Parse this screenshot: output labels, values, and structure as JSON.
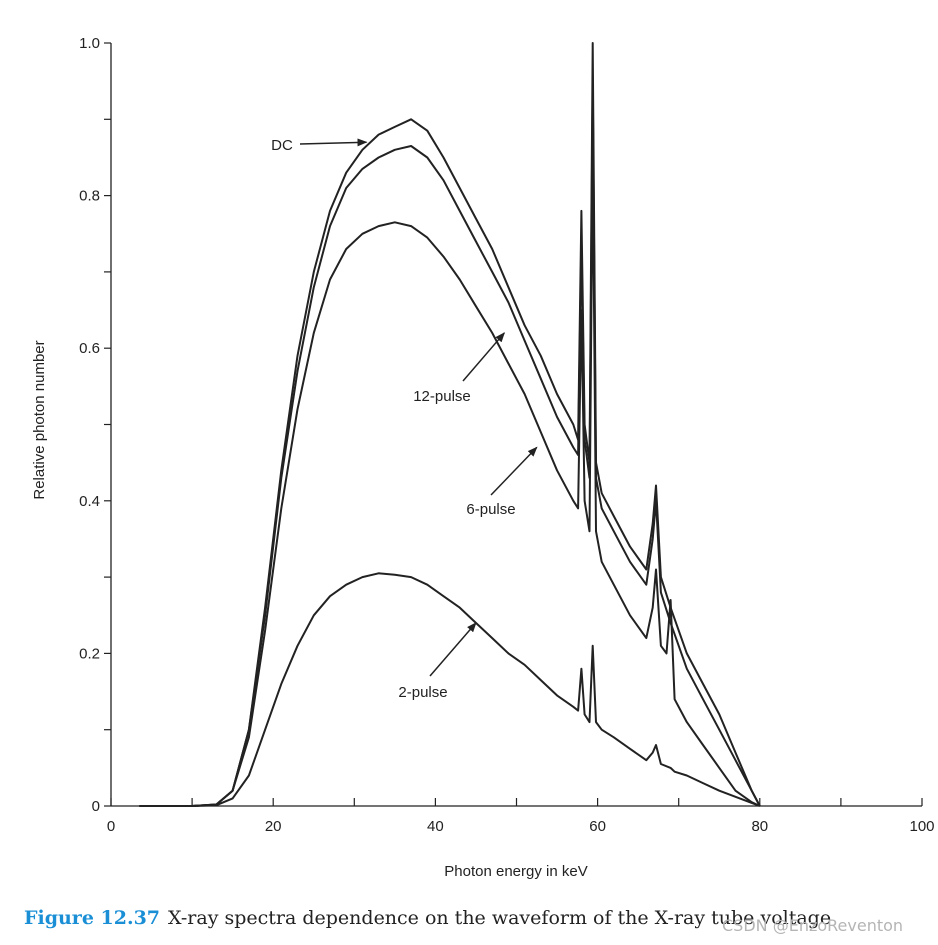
{
  "caption": {
    "figure_number": "Figure 12.37",
    "text": "X-ray spectra dependence on the waveform of the X-ray tube voltage"
  },
  "watermark": "CSDN @EnzoReventon",
  "chart_data": {
    "type": "line",
    "title": "",
    "xlabel": "Photon energy in keV",
    "ylabel": "Relative photon number",
    "xlim": [
      0,
      100
    ],
    "ylim": [
      0,
      1.0
    ],
    "x_ticks": [
      0,
      20,
      40,
      60,
      80,
      100
    ],
    "x_tick_labels": [
      "0",
      "20",
      "40",
      "60",
      "80",
      "100"
    ],
    "x_minor_ticks": [
      10,
      30,
      50,
      70,
      90
    ],
    "y_ticks": [
      0,
      0.2,
      0.4,
      0.6,
      0.8,
      1.0
    ],
    "y_tick_labels": [
      "0",
      "0.2",
      "0.4",
      "0.6",
      "0.8",
      "1.0"
    ],
    "y_minor_ticks": [
      0.1,
      0.3,
      0.5,
      0.7,
      0.9
    ],
    "grid": false,
    "series": [
      {
        "name": "DC",
        "x": [
          3.5,
          10,
          13,
          15,
          17,
          19,
          21,
          23,
          25,
          27,
          29,
          31,
          33,
          35,
          37,
          39,
          41,
          43,
          45,
          47,
          49,
          51,
          53,
          55,
          57,
          57.6,
          58,
          58.4,
          59,
          59.4,
          59.8,
          60.5,
          62,
          64,
          66,
          66.8,
          67.2,
          67.8,
          69,
          71,
          73,
          75,
          77,
          79,
          80
        ],
        "y": [
          0,
          0,
          0.002,
          0.02,
          0.1,
          0.26,
          0.44,
          0.59,
          0.7,
          0.78,
          0.83,
          0.86,
          0.88,
          0.89,
          0.9,
          0.885,
          0.85,
          0.81,
          0.77,
          0.73,
          0.68,
          0.63,
          0.59,
          0.54,
          0.5,
          0.48,
          0.78,
          0.5,
          0.45,
          1.0,
          0.45,
          0.41,
          0.38,
          0.34,
          0.31,
          0.37,
          0.42,
          0.3,
          0.26,
          0.2,
          0.16,
          0.12,
          0.07,
          0.02,
          0.0
        ]
      },
      {
        "name": "12-pulse",
        "x": [
          3.5,
          10,
          13,
          15,
          17,
          19,
          21,
          23,
          25,
          27,
          29,
          31,
          33,
          35,
          37,
          39,
          41,
          43,
          45,
          47,
          49,
          51,
          53,
          55,
          57,
          57.6,
          58,
          58.4,
          59,
          59.4,
          59.8,
          60.5,
          62,
          64,
          66,
          66.8,
          67.2,
          67.8,
          69,
          71,
          73,
          75,
          77,
          79,
          80
        ],
        "y": [
          0,
          0,
          0.002,
          0.02,
          0.1,
          0.25,
          0.43,
          0.57,
          0.68,
          0.76,
          0.81,
          0.835,
          0.85,
          0.86,
          0.865,
          0.85,
          0.82,
          0.78,
          0.74,
          0.7,
          0.66,
          0.61,
          0.56,
          0.51,
          0.47,
          0.46,
          0.74,
          0.48,
          0.43,
          0.95,
          0.43,
          0.39,
          0.36,
          0.32,
          0.29,
          0.35,
          0.4,
          0.28,
          0.24,
          0.18,
          0.14,
          0.1,
          0.06,
          0.02,
          0.0
        ]
      },
      {
        "name": "6-pulse",
        "x": [
          3.5,
          10,
          13,
          15,
          17,
          19,
          21,
          23,
          25,
          27,
          29,
          31,
          33,
          35,
          37,
          39,
          41,
          43,
          45,
          47,
          49,
          51,
          53,
          55,
          57,
          57.6,
          58,
          58.4,
          59,
          59.4,
          59.8,
          60.5,
          62,
          64,
          66,
          66.8,
          67.2,
          67.8,
          68.5,
          69,
          69.5,
          71,
          73,
          75,
          77,
          79,
          80
        ],
        "y": [
          0,
          0,
          0.002,
          0.02,
          0.09,
          0.23,
          0.39,
          0.52,
          0.62,
          0.69,
          0.73,
          0.75,
          0.76,
          0.765,
          0.76,
          0.745,
          0.72,
          0.69,
          0.655,
          0.62,
          0.58,
          0.54,
          0.49,
          0.44,
          0.4,
          0.39,
          0.65,
          0.4,
          0.36,
          0.85,
          0.36,
          0.32,
          0.29,
          0.25,
          0.22,
          0.26,
          0.31,
          0.21,
          0.2,
          0.27,
          0.14,
          0.11,
          0.08,
          0.05,
          0.02,
          0.005,
          0.0
        ]
      },
      {
        "name": "2-pulse",
        "x": [
          3.5,
          10,
          13,
          15,
          17,
          19,
          21,
          23,
          25,
          27,
          29,
          31,
          33,
          35,
          37,
          39,
          41,
          43,
          45,
          47,
          49,
          51,
          53,
          55,
          57,
          57.6,
          58,
          58.4,
          59,
          59.4,
          59.8,
          60.5,
          62,
          64,
          66,
          66.8,
          67.2,
          67.8,
          69,
          69.5,
          71,
          73,
          75,
          77,
          79,
          80
        ],
        "y": [
          0,
          0,
          0.001,
          0.01,
          0.04,
          0.1,
          0.16,
          0.21,
          0.25,
          0.275,
          0.29,
          0.3,
          0.305,
          0.303,
          0.3,
          0.29,
          0.275,
          0.26,
          0.24,
          0.22,
          0.2,
          0.185,
          0.165,
          0.145,
          0.13,
          0.125,
          0.18,
          0.12,
          0.11,
          0.21,
          0.11,
          0.1,
          0.09,
          0.075,
          0.06,
          0.07,
          0.08,
          0.055,
          0.05,
          0.045,
          0.04,
          0.03,
          0.02,
          0.012,
          0.004,
          0.0
        ]
      }
    ],
    "annotations": [
      {
        "text": "DC",
        "target_series": "DC",
        "arrow_tip": [
          31.5,
          0.87
        ]
      },
      {
        "text": "12-pulse",
        "target_series": "12-pulse",
        "arrow_tip": [
          48.5,
          0.62
        ]
      },
      {
        "text": "6-pulse",
        "target_series": "6-pulse",
        "arrow_tip": [
          52.5,
          0.47
        ]
      },
      {
        "text": "2-pulse",
        "target_series": "2-pulse",
        "arrow_tip": [
          45,
          0.24
        ]
      }
    ]
  }
}
